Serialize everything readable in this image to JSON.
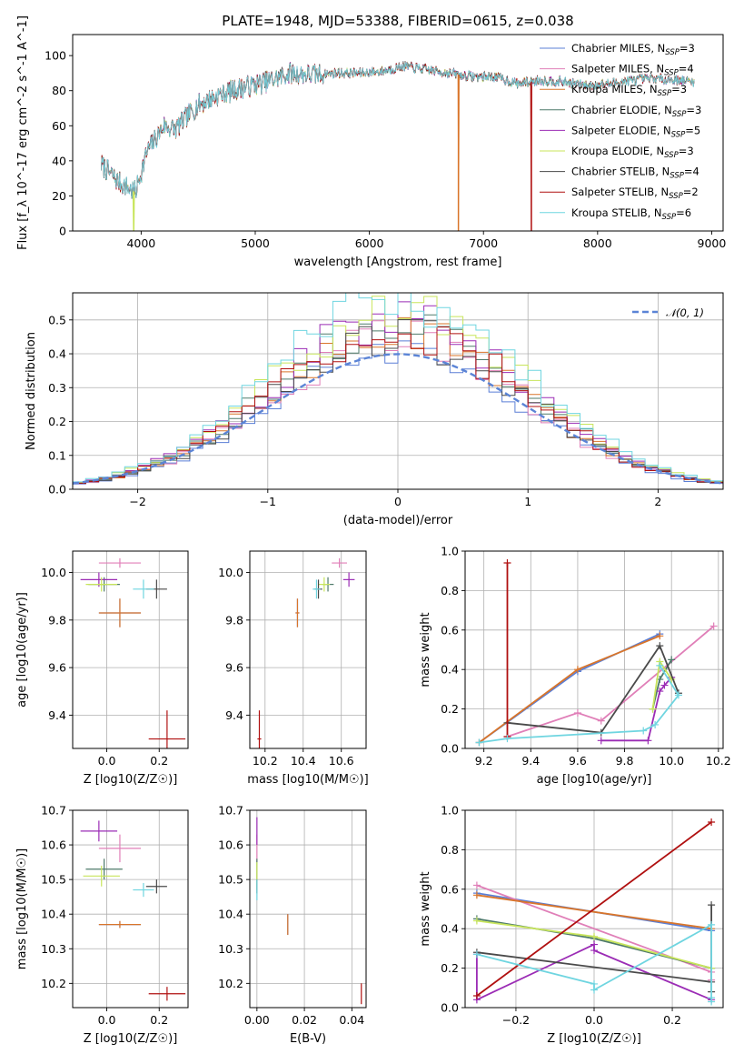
{
  "figure_title": "PLATE=1948, MJD=53388, FIBERID=0615, z=0.038",
  "colors": {
    "Chabrier MILES": "#5b7fd6",
    "Salpeter MILES": "#e07fb8",
    "Kroupa MILES": "#d9752a",
    "Chabrier ELODIE": "#4e7a6a",
    "Salpeter ELODIE": "#9b2cb5",
    "Kroupa ELODIE": "#c8e55b",
    "Chabrier STELIB": "#4a4a4a",
    "Salpeter STELIB": "#b01010",
    "Kroupa STELIB": "#6fd5e0",
    "normal": "#5b84d6"
  },
  "chart_data": [
    {
      "id": "spectrum",
      "type": "line",
      "xlabel": "wavelength [Angstrom, rest frame]",
      "ylabel": "Flux [f_λ 10^-17 erg cm^-2 s^-1 A^-1]",
      "xlim": [
        3400,
        9100
      ],
      "ylim": [
        0,
        112
      ],
      "xticks": [
        4000,
        5000,
        6000,
        7000,
        8000,
        9000
      ],
      "yticks": [
        0,
        20,
        40,
        60,
        80,
        100
      ],
      "grid": false,
      "legend_position": "top-right",
      "legend": [
        {
          "name": "Chabrier MILES",
          "nssp": "3"
        },
        {
          "name": "Salpeter MILES",
          "nssp": "4"
        },
        {
          "name": "Kroupa MILES",
          "nssp": "3"
        },
        {
          "name": "Chabrier ELODIE",
          "nssp": "3"
        },
        {
          "name": "Salpeter ELODIE",
          "nssp": "5"
        },
        {
          "name": "Kroupa ELODIE",
          "nssp": "3"
        },
        {
          "name": "Chabrier STELIB",
          "nssp": "4"
        },
        {
          "name": "Salpeter STELIB",
          "nssp": "2"
        },
        {
          "name": "Kroupa STELIB",
          "nssp": "6"
        }
      ],
      "continuum": {
        "x": [
          3650,
          3800,
          3950,
          4050,
          4200,
          4300,
          4500,
          4700,
          4900,
          5100,
          5300,
          5500,
          5700,
          5900,
          6100,
          6300,
          6500,
          6700,
          6900,
          7100,
          7300,
          7500,
          7700,
          7900,
          8100,
          8300,
          8500,
          8700,
          8850
        ],
        "y": [
          38,
          28,
          22,
          45,
          60,
          58,
          72,
          78,
          82,
          85,
          90,
          89,
          90,
          90,
          91,
          94,
          92,
          90,
          88,
          88,
          84,
          86,
          85,
          83,
          84,
          86,
          87,
          86,
          85
        ]
      },
      "dropouts": [
        {
          "x": 3935,
          "y": 0,
          "series": "Kroupa ELODIE"
        },
        {
          "x": 6780,
          "y": 0,
          "series": "Kroupa MILES"
        },
        {
          "x": 7420,
          "y": 0,
          "series": "Salpeter STELIB"
        }
      ]
    },
    {
      "id": "residuals",
      "type": "histogram",
      "xlabel": "(data-model)/error",
      "ylabel": "Normed distribution",
      "xlim": [
        -2.5,
        2.5
      ],
      "ylim": [
        0,
        0.58
      ],
      "xticks": [
        -2,
        -1,
        0,
        1,
        2
      ],
      "yticks": [
        0.0,
        0.1,
        0.2,
        0.3,
        0.4,
        0.5
      ],
      "grid": true,
      "legend_position": "top-right",
      "legend": [
        {
          "name": "𝒩(0, 1)",
          "style": "dashed"
        }
      ],
      "bin_width": 0.1,
      "peak_values": [
        0.4,
        0.44,
        0.46,
        0.48,
        0.5,
        0.52,
        0.45,
        0.47,
        0.56
      ]
    },
    {
      "id": "age_vs_Z",
      "type": "scatter",
      "xlabel": "Z [log10(Z/Z☉)]",
      "ylabel": "age [log10(age/yr)]",
      "xlim": [
        -0.13,
        0.31
      ],
      "ylim": [
        9.26,
        10.09
      ],
      "xticks": [
        0.0,
        0.2
      ],
      "yticks": [
        9.4,
        9.6,
        9.8,
        10.0
      ],
      "grid": true,
      "points": [
        {
          "series": "Chabrier MILES",
          "x": 0.05,
          "y": 9.83,
          "xerr": 0.08,
          "yerr": 0.06
        },
        {
          "series": "Salpeter MILES",
          "x": 0.05,
          "y": 10.04,
          "xerr": 0.08,
          "yerr": 0.02
        },
        {
          "series": "Kroupa MILES",
          "x": 0.05,
          "y": 9.83,
          "xerr": 0.08,
          "yerr": 0.06
        },
        {
          "series": "Chabrier ELODIE",
          "x": -0.01,
          "y": 9.95,
          "xerr": 0.06,
          "yerr": 0.03
        },
        {
          "series": "Salpeter ELODIE",
          "x": -0.03,
          "y": 9.97,
          "xerr": 0.07,
          "yerr": 0.03
        },
        {
          "series": "Kroupa ELODIE",
          "x": -0.02,
          "y": 9.95,
          "xerr": 0.06,
          "yerr": 0.03
        },
        {
          "series": "Chabrier STELIB",
          "x": 0.19,
          "y": 9.93,
          "xerr": 0.04,
          "yerr": 0.04
        },
        {
          "series": "Salpeter STELIB",
          "x": 0.23,
          "y": 9.3,
          "xerr": 0.07,
          "yerr": 0.12
        },
        {
          "series": "Kroupa STELIB",
          "x": 0.14,
          "y": 9.93,
          "xerr": 0.04,
          "yerr": 0.04
        }
      ]
    },
    {
      "id": "age_vs_mass",
      "type": "scatter",
      "xlabel": "mass [log10(M/M☉)]",
      "ylabel": "",
      "xlim": [
        10.12,
        10.73
      ],
      "ylim": [
        9.26,
        10.09
      ],
      "xticks": [
        10.2,
        10.4,
        10.6
      ],
      "yticks": [
        9.4,
        9.6,
        9.8,
        10.0
      ],
      "grid": true,
      "points": [
        {
          "series": "Chabrier MILES",
          "x": 10.37,
          "y": 9.83,
          "xerr": 0.01,
          "yerr": 0.06
        },
        {
          "series": "Salpeter MILES",
          "x": 10.59,
          "y": 10.04,
          "xerr": 0.04,
          "yerr": 0.02
        },
        {
          "series": "Kroupa MILES",
          "x": 10.37,
          "y": 9.83,
          "xerr": 0.01,
          "yerr": 0.06
        },
        {
          "series": "Chabrier ELODIE",
          "x": 10.53,
          "y": 9.95,
          "xerr": 0.03,
          "yerr": 0.03
        },
        {
          "series": "Salpeter ELODIE",
          "x": 10.64,
          "y": 9.97,
          "xerr": 0.03,
          "yerr": 0.03
        },
        {
          "series": "Kroupa ELODIE",
          "x": 10.51,
          "y": 9.95,
          "xerr": 0.03,
          "yerr": 0.03
        },
        {
          "series": "Chabrier STELIB",
          "x": 10.48,
          "y": 9.93,
          "xerr": 0.02,
          "yerr": 0.04
        },
        {
          "series": "Salpeter STELIB",
          "x": 10.17,
          "y": 9.3,
          "xerr": 0.01,
          "yerr": 0.12
        },
        {
          "series": "Kroupa STELIB",
          "x": 10.47,
          "y": 9.93,
          "xerr": 0.02,
          "yerr": 0.04
        }
      ]
    },
    {
      "id": "weight_vs_age",
      "type": "line",
      "xlabel": "age  [log10(age/yr)]",
      "ylabel": "mass weight",
      "xlim": [
        9.12,
        10.22
      ],
      "ylim": [
        0,
        1
      ],
      "xticks": [
        9.2,
        9.4,
        9.6,
        9.8,
        10.0,
        10.2
      ],
      "yticks": [
        0.0,
        0.2,
        0.4,
        0.6,
        0.8,
        1.0
      ],
      "grid": true,
      "series": [
        {
          "name": "Chabrier MILES",
          "x": [
            9.18,
            9.6,
            9.95
          ],
          "y": [
            0.03,
            0.39,
            0.58
          ]
        },
        {
          "name": "Salpeter MILES",
          "x": [
            9.3,
            9.6,
            9.7,
            10.18
          ],
          "y": [
            0.06,
            0.18,
            0.14,
            0.62
          ]
        },
        {
          "name": "Kroupa MILES",
          "x": [
            9.18,
            9.6,
            9.95
          ],
          "y": [
            0.03,
            0.4,
            0.57
          ]
        },
        {
          "name": "Chabrier ELODIE",
          "x": [
            9.92,
            9.95,
            10.0
          ],
          "y": [
            0.2,
            0.35,
            0.45
          ]
        },
        {
          "name": "Salpeter ELODIE",
          "x": [
            9.7,
            9.9,
            9.95,
            9.97,
            10.0
          ],
          "y": [
            0.04,
            0.04,
            0.29,
            0.32,
            0.36
          ]
        },
        {
          "name": "Kroupa ELODIE",
          "x": [
            9.92,
            9.95,
            10.0
          ],
          "y": [
            0.2,
            0.44,
            0.35
          ]
        },
        {
          "name": "Chabrier STELIB",
          "x": [
            9.3,
            9.7,
            9.95,
            10.03
          ],
          "y": [
            0.13,
            0.08,
            0.52,
            0.28
          ]
        },
        {
          "name": "Salpeter STELIB",
          "x": [
            9.3,
            9.3
          ],
          "y": [
            0.06,
            0.94
          ]
        },
        {
          "name": "Kroupa STELIB",
          "x": [
            9.18,
            9.3,
            9.88,
            9.93,
            10.03,
            9.95
          ],
          "y": [
            0.03,
            0.05,
            0.09,
            0.12,
            0.27,
            0.42
          ]
        }
      ]
    },
    {
      "id": "mass_vs_Z",
      "type": "scatter",
      "xlabel": "Z [log10(Z/Z☉)]",
      "ylabel": "mass [log10(M/M☉)]",
      "xlim": [
        -0.13,
        0.31
      ],
      "ylim": [
        10.13,
        10.7
      ],
      "xticks": [
        0.0,
        0.2
      ],
      "yticks": [
        10.2,
        10.3,
        10.4,
        10.5,
        10.6,
        10.7
      ],
      "grid": true,
      "points": [
        {
          "series": "Chabrier MILES",
          "x": 0.05,
          "y": 10.37,
          "xerr": 0.08,
          "yerr": 0.01
        },
        {
          "series": "Salpeter MILES",
          "x": 0.05,
          "y": 10.59,
          "xerr": 0.08,
          "yerr": 0.04
        },
        {
          "series": "Kroupa MILES",
          "x": 0.05,
          "y": 10.37,
          "xerr": 0.08,
          "yerr": 0.01
        },
        {
          "series": "Chabrier ELODIE",
          "x": -0.01,
          "y": 10.53,
          "xerr": 0.07,
          "yerr": 0.03
        },
        {
          "series": "Salpeter ELODIE",
          "x": -0.03,
          "y": 10.64,
          "xerr": 0.07,
          "yerr": 0.03
        },
        {
          "series": "Kroupa ELODIE",
          "x": -0.02,
          "y": 10.51,
          "xerr": 0.07,
          "yerr": 0.03
        },
        {
          "series": "Chabrier STELIB",
          "x": 0.19,
          "y": 10.48,
          "xerr": 0.04,
          "yerr": 0.02
        },
        {
          "series": "Salpeter STELIB",
          "x": 0.23,
          "y": 10.17,
          "xerr": 0.07,
          "yerr": 0.02
        },
        {
          "series": "Kroupa STELIB",
          "x": 0.14,
          "y": 10.47,
          "xerr": 0.04,
          "yerr": 0.02
        }
      ]
    },
    {
      "id": "mass_vs_ebv",
      "type": "scatter",
      "xlabel": "E(B-V)",
      "ylabel": "",
      "xlim": [
        -0.003,
        0.046
      ],
      "ylim": [
        10.13,
        10.7
      ],
      "xticks": [
        0.0,
        0.02,
        0.04
      ],
      "yticks": [
        10.2,
        10.3,
        10.4,
        10.5,
        10.6,
        10.7
      ],
      "grid": true,
      "points": [
        {
          "series": "Chabrier MILES",
          "x": 0.013,
          "y": 10.37,
          "xerr": 0,
          "yerr": 0.03
        },
        {
          "series": "Salpeter MILES",
          "x": 0.0,
          "y": 10.59,
          "xerr": 0,
          "yerr": 0.04
        },
        {
          "series": "Kroupa MILES",
          "x": 0.013,
          "y": 10.37,
          "xerr": 0,
          "yerr": 0.03
        },
        {
          "series": "Chabrier ELODIE",
          "x": 0.0,
          "y": 10.53,
          "xerr": 0,
          "yerr": 0.03
        },
        {
          "series": "Salpeter ELODIE",
          "x": 0.0,
          "y": 10.64,
          "xerr": 0,
          "yerr": 0.04
        },
        {
          "series": "Kroupa ELODIE",
          "x": 0.0,
          "y": 10.51,
          "xerr": 0,
          "yerr": 0.04
        },
        {
          "series": "Chabrier STELIB",
          "x": 0.0,
          "y": 10.48,
          "xerr": 0,
          "yerr": 0.02
        },
        {
          "series": "Salpeter STELIB",
          "x": 0.044,
          "y": 10.17,
          "xerr": 0,
          "yerr": 0.03
        },
        {
          "series": "Kroupa STELIB",
          "x": 0.0,
          "y": 10.47,
          "xerr": 0,
          "yerr": 0.03
        }
      ]
    },
    {
      "id": "weight_vs_Z",
      "type": "line",
      "xlabel": "Z [log10(Z/Z☉)]",
      "ylabel": "mass weight",
      "xlim": [
        -0.33,
        0.33
      ],
      "ylim": [
        0,
        1
      ],
      "xticks": [
        -0.2,
        0.0,
        0.2
      ],
      "yticks": [
        0.0,
        0.2,
        0.4,
        0.6,
        0.8,
        1.0
      ],
      "grid": true,
      "series": [
        {
          "name": "Chabrier MILES",
          "x": [
            -0.3,
            0.3
          ],
          "y": [
            0.58,
            0.39
          ]
        },
        {
          "name": "Salpeter MILES",
          "x": [
            -0.3,
            0.3,
            0.3
          ],
          "y": [
            0.62,
            0.18,
            0.14
          ]
        },
        {
          "name": "Kroupa MILES",
          "x": [
            -0.3,
            0.3
          ],
          "y": [
            0.57,
            0.4
          ]
        },
        {
          "name": "Chabrier ELODIE",
          "x": [
            -0.3,
            0.0,
            0.3
          ],
          "y": [
            0.45,
            0.35,
            0.2
          ]
        },
        {
          "name": "Salpeter ELODIE",
          "x": [
            -0.3,
            -0.3,
            0.0,
            0.0,
            0.3
          ],
          "y": [
            0.27,
            0.04,
            0.32,
            0.29,
            0.04
          ]
        },
        {
          "name": "Kroupa ELODIE",
          "x": [
            -0.3,
            0.0,
            0.3
          ],
          "y": [
            0.44,
            0.36,
            0.2
          ]
        },
        {
          "name": "Chabrier STELIB",
          "x": [
            -0.3,
            0.3,
            0.3,
            0.3
          ],
          "y": [
            0.28,
            0.13,
            0.08,
            0.52
          ]
        },
        {
          "name": "Salpeter STELIB",
          "x": [
            -0.3,
            0.3
          ],
          "y": [
            0.06,
            0.94
          ]
        },
        {
          "name": "Kroupa STELIB",
          "x": [
            -0.3,
            0.0,
            0.0,
            0.3,
            0.3,
            0.3
          ],
          "y": [
            0.27,
            0.12,
            0.09,
            0.42,
            0.05,
            0.03
          ]
        }
      ]
    }
  ]
}
